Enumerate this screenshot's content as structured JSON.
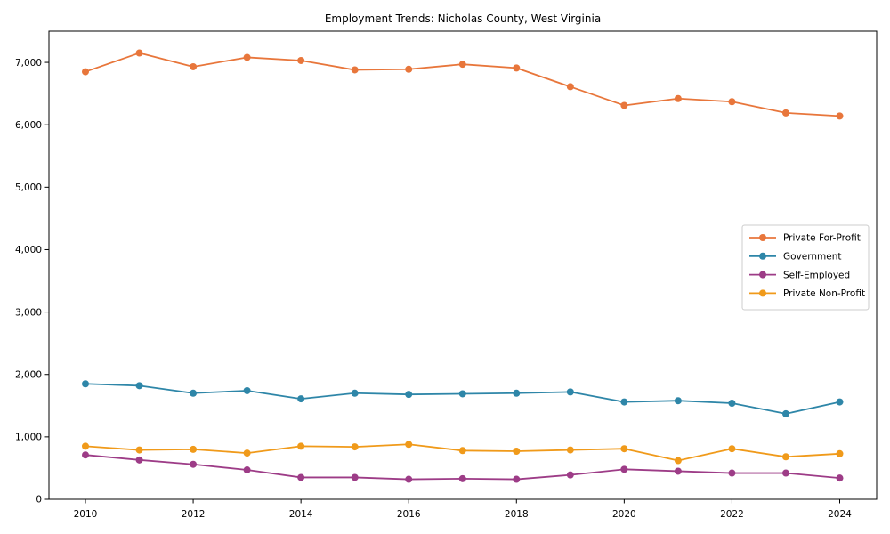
{
  "chart_data": {
    "type": "line",
    "title": "Employment Trends: Nicholas County, West Virginia",
    "xlabel": "",
    "ylabel": "",
    "x": [
      2010,
      2011,
      2012,
      2013,
      2014,
      2015,
      2016,
      2017,
      2018,
      2019,
      2020,
      2021,
      2022,
      2023,
      2024
    ],
    "series": [
      {
        "name": "Private For-Profit",
        "color": "#e8763b",
        "values": [
          6850,
          7150,
          6930,
          7080,
          7030,
          6880,
          6890,
          6970,
          6910,
          6610,
          6310,
          6420,
          6370,
          6190,
          6140
        ]
      },
      {
        "name": "Government",
        "color": "#2e86a8",
        "values": [
          1850,
          1820,
          1700,
          1740,
          1610,
          1700,
          1680,
          1690,
          1700,
          1720,
          1560,
          1580,
          1540,
          1370,
          1560
        ]
      },
      {
        "name": "Self-Employed",
        "color": "#9d3c87",
        "values": [
          710,
          630,
          560,
          470,
          350,
          350,
          320,
          330,
          320,
          390,
          480,
          450,
          420,
          420,
          340
        ]
      },
      {
        "name": "Private Non-Profit",
        "color": "#f09a1a",
        "values": [
          850,
          790,
          800,
          740,
          850,
          840,
          880,
          780,
          770,
          790,
          810,
          620,
          810,
          680,
          730
        ]
      }
    ],
    "xticks": [
      2010,
      2012,
      2014,
      2016,
      2018,
      2020,
      2022,
      2024
    ],
    "yticks": [
      {
        "value": 0,
        "label": "0"
      },
      {
        "value": 1000,
        "label": "1,000"
      },
      {
        "value": 2000,
        "label": "2,000"
      },
      {
        "value": 3000,
        "label": "3,000"
      },
      {
        "value": 4000,
        "label": "4,000"
      },
      {
        "value": 5000,
        "label": "5,000"
      },
      {
        "value": 6000,
        "label": "6,000"
      },
      {
        "value": 7000,
        "label": "7,000"
      }
    ],
    "ylim": [
      0,
      7500
    ],
    "grid": false,
    "legend_position": "center right",
    "marker": "circle",
    "axis_color": "#000000",
    "legend_border_color": "#cccccc",
    "legend_background": "#ffffff"
  }
}
